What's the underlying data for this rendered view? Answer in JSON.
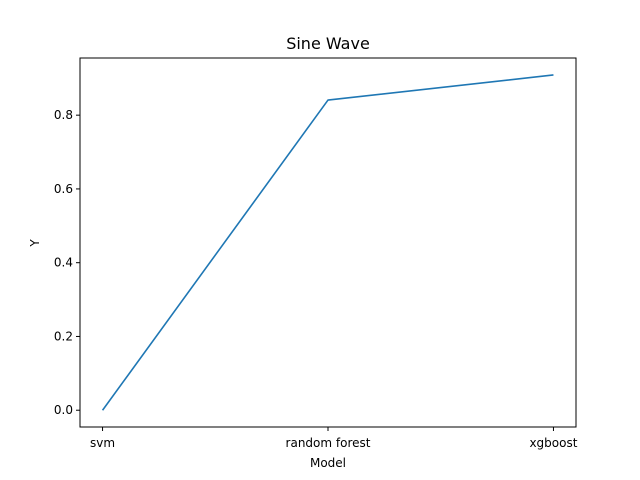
{
  "chart_data": {
    "type": "line",
    "title": "Sine Wave",
    "xlabel": "Model",
    "ylabel": "Y",
    "categories": [
      "svm",
      "random forest",
      "xgboost"
    ],
    "series": [
      {
        "values": [
          0.0,
          0.841,
          0.909
        ],
        "color": "#1f77b4"
      }
    ],
    "ylim": [
      -0.0455,
      0.955
    ],
    "yticks": [
      0.0,
      0.2,
      0.4,
      0.6,
      0.8
    ],
    "grid": false,
    "legend": "none"
  }
}
